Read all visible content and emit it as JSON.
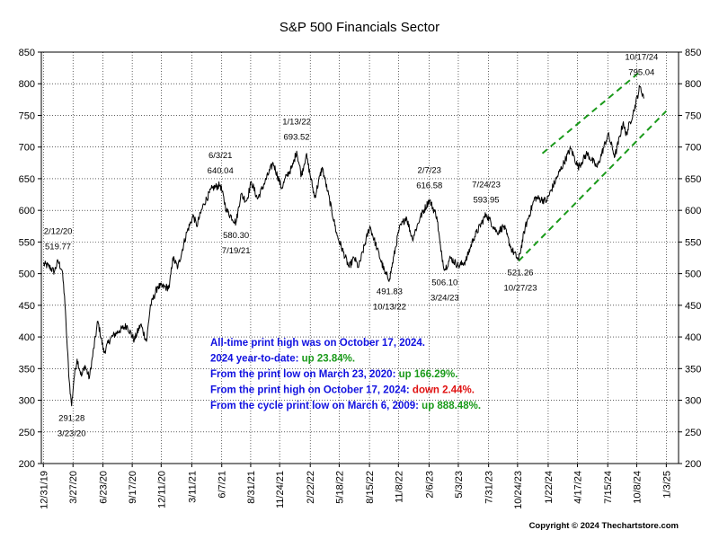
{
  "chart_data": {
    "type": "line",
    "title": "S&P 500 Financials Sector",
    "xlabel": "",
    "ylabel": "",
    "ylim": [
      200,
      850
    ],
    "yticks": [
      200,
      250,
      300,
      350,
      400,
      450,
      500,
      550,
      600,
      650,
      700,
      750,
      800,
      850
    ],
    "x_tick_labels": [
      "12/31/19",
      "3/27/20",
      "6/23/20",
      "9/17/20",
      "12/11/20",
      "3/11/21",
      "6/7/21",
      "8/31/21",
      "11/24/21",
      "2/22/22",
      "5/18/22",
      "8/15/22",
      "11/8/22",
      "2/6/23",
      "5/3/23",
      "7/31/23",
      "10/24/23",
      "1/22/24",
      "4/17/24",
      "7/15/24",
      "10/8/24",
      "1/3/25"
    ],
    "grid": true,
    "series": [
      {
        "values": [
          {
            "x": "2019-12-31",
            "y": 515
          },
          {
            "x": "2020-01-15",
            "y": 512
          },
          {
            "x": "2020-02-01",
            "y": 503
          },
          {
            "x": "2020-02-12",
            "y": 519.77
          },
          {
            "x": "2020-02-24",
            "y": 505
          },
          {
            "x": "2020-03-02",
            "y": 465
          },
          {
            "x": "2020-03-09",
            "y": 395
          },
          {
            "x": "2020-03-16",
            "y": 330
          },
          {
            "x": "2020-03-23",
            "y": 291.28
          },
          {
            "x": "2020-03-30",
            "y": 335
          },
          {
            "x": "2020-04-08",
            "y": 365
          },
          {
            "x": "2020-04-21",
            "y": 338
          },
          {
            "x": "2020-05-01",
            "y": 355
          },
          {
            "x": "2020-05-14",
            "y": 335
          },
          {
            "x": "2020-06-08",
            "y": 425
          },
          {
            "x": "2020-06-26",
            "y": 375
          },
          {
            "x": "2020-07-15",
            "y": 398
          },
          {
            "x": "2020-08-10",
            "y": 410
          },
          {
            "x": "2020-09-01",
            "y": 418
          },
          {
            "x": "2020-09-23",
            "y": 395
          },
          {
            "x": "2020-10-12",
            "y": 420
          },
          {
            "x": "2020-10-29",
            "y": 393
          },
          {
            "x": "2020-11-09",
            "y": 448
          },
          {
            "x": "2020-12-01",
            "y": 480
          },
          {
            "x": "2021-01-04",
            "y": 478
          },
          {
            "x": "2021-01-14",
            "y": 525
          },
          {
            "x": "2021-01-29",
            "y": 510
          },
          {
            "x": "2021-02-24",
            "y": 565
          },
          {
            "x": "2021-03-16",
            "y": 592
          },
          {
            "x": "2021-03-25",
            "y": 575
          },
          {
            "x": "2021-04-15",
            "y": 610
          },
          {
            "x": "2021-05-10",
            "y": 635
          },
          {
            "x": "2021-06-03",
            "y": 640.04
          },
          {
            "x": "2021-06-21",
            "y": 600
          },
          {
            "x": "2021-07-19",
            "y": 580.3
          },
          {
            "x": "2021-08-02",
            "y": 625
          },
          {
            "x": "2021-08-19",
            "y": 615
          },
          {
            "x": "2021-09-02",
            "y": 645
          },
          {
            "x": "2021-09-20",
            "y": 618
          },
          {
            "x": "2021-10-08",
            "y": 640
          },
          {
            "x": "2021-11-05",
            "y": 675
          },
          {
            "x": "2021-11-30",
            "y": 635
          },
          {
            "x": "2021-12-15",
            "y": 655
          },
          {
            "x": "2021-12-31",
            "y": 668
          },
          {
            "x": "2022-01-13",
            "y": 693.52
          },
          {
            "x": "2022-01-27",
            "y": 655
          },
          {
            "x": "2022-02-10",
            "y": 688
          },
          {
            "x": "2022-03-07",
            "y": 620
          },
          {
            "x": "2022-03-29",
            "y": 668
          },
          {
            "x": "2022-04-14",
            "y": 630
          },
          {
            "x": "2022-05-12",
            "y": 560
          },
          {
            "x": "2022-06-16",
            "y": 510
          },
          {
            "x": "2022-07-01",
            "y": 525
          },
          {
            "x": "2022-07-14",
            "y": 510
          },
          {
            "x": "2022-08-16",
            "y": 575
          },
          {
            "x": "2022-09-06",
            "y": 540
          },
          {
            "x": "2022-09-30",
            "y": 500
          },
          {
            "x": "2022-10-13",
            "y": 491.83
          },
          {
            "x": "2022-11-10",
            "y": 570
          },
          {
            "x": "2022-12-01",
            "y": 590
          },
          {
            "x": "2022-12-19",
            "y": 555
          },
          {
            "x": "2023-01-12",
            "y": 590
          },
          {
            "x": "2023-02-07",
            "y": 616.58
          },
          {
            "x": "2023-03-01",
            "y": 590
          },
          {
            "x": "2023-03-13",
            "y": 535
          },
          {
            "x": "2023-03-24",
            "y": 506.1
          },
          {
            "x": "2023-04-10",
            "y": 525
          },
          {
            "x": "2023-05-04",
            "y": 512
          },
          {
            "x": "2023-05-25",
            "y": 520
          },
          {
            "x": "2023-06-16",
            "y": 555
          },
          {
            "x": "2023-07-24",
            "y": 593.95
          },
          {
            "x": "2023-08-25",
            "y": 565
          },
          {
            "x": "2023-09-14",
            "y": 575
          },
          {
            "x": "2023-10-05",
            "y": 540
          },
          {
            "x": "2023-10-27",
            "y": 521.26
          },
          {
            "x": "2023-11-15",
            "y": 572
          },
          {
            "x": "2023-12-14",
            "y": 620
          },
          {
            "x": "2024-01-17",
            "y": 615
          },
          {
            "x": "2024-02-15",
            "y": 650
          },
          {
            "x": "2024-03-28",
            "y": 698
          },
          {
            "x": "2024-04-19",
            "y": 668
          },
          {
            "x": "2024-05-15",
            "y": 690
          },
          {
            "x": "2024-06-14",
            "y": 668
          },
          {
            "x": "2024-07-16",
            "y": 720
          },
          {
            "x": "2024-08-05",
            "y": 685
          },
          {
            "x": "2024-08-30",
            "y": 740
          },
          {
            "x": "2024-09-06",
            "y": 718
          },
          {
            "x": "2024-09-30",
            "y": 758
          },
          {
            "x": "2024-10-17",
            "y": 795.04
          },
          {
            "x": "2024-10-30",
            "y": 778
          }
        ]
      }
    ],
    "annotations": [
      {
        "date_label": "2/12/20",
        "value_label": "519.77",
        "x": "2020-02-12",
        "y": 519.77,
        "pos": "above"
      },
      {
        "date_label": "3/23/20",
        "value_label": "291.28",
        "x": "2020-03-23",
        "y": 291.28,
        "pos": "below"
      },
      {
        "date_label": "6/3/21",
        "value_label": "640.04",
        "x": "2021-06-03",
        "y": 640.04,
        "pos": "above"
      },
      {
        "date_label": "7/19/21",
        "value_label": "580.30",
        "x": "2021-07-19",
        "y": 580.3,
        "pos": "below"
      },
      {
        "date_label": "1/13/22",
        "value_label": "693.52",
        "x": "2022-01-13",
        "y": 693.52,
        "pos": "above"
      },
      {
        "date_label": "10/13/22",
        "value_label": "491.83",
        "x": "2022-10-13",
        "y": 491.83,
        "pos": "below"
      },
      {
        "date_label": "2/7/23",
        "value_label": "616.58",
        "x": "2023-02-07",
        "y": 616.58,
        "pos": "above"
      },
      {
        "date_label": "3/24/23",
        "value_label": "506.10",
        "x": "2023-03-24",
        "y": 506.1,
        "pos": "below"
      },
      {
        "date_label": "7/24/23",
        "value_label": "593.95",
        "x": "2023-07-24",
        "y": 593.95,
        "pos": "above"
      },
      {
        "date_label": "10/27/23",
        "value_label": "521.26",
        "x": "2023-10-27",
        "y": 521.26,
        "pos": "below"
      },
      {
        "date_label": "10/17/24",
        "value_label": "795.04",
        "x": "2024-10-17",
        "y": 795.04,
        "pos": "above"
      }
    ],
    "trend_channel": {
      "color": "#1a9a1a",
      "upper": [
        {
          "x": "2024-01-05",
          "y": 690
        },
        {
          "x": "2024-10-20",
          "y": 820
        }
      ],
      "lower": [
        {
          "x": "2023-10-27",
          "y": 520
        },
        {
          "x": "2025-01-03",
          "y": 757
        }
      ]
    },
    "notes": [
      {
        "parts": [
          {
            "text": "All-time print high was on October 17, 2024.",
            "color": "#1010e0"
          }
        ]
      },
      {
        "parts": [
          {
            "text": "2024 year-to-date:  ",
            "color": "#1010e0"
          },
          {
            "text": "up 23.84%.",
            "color": "#1a9a1a"
          }
        ]
      },
      {
        "parts": [
          {
            "text": "From the print low on March 23, 2020:  ",
            "color": "#1010e0"
          },
          {
            "text": "up 166.29%.",
            "color": "#1a9a1a"
          }
        ]
      },
      {
        "parts": [
          {
            "text": "From the print high on October 17, 2024:  ",
            "color": "#1010e0"
          },
          {
            "text": "down 2.44%.",
            "color": "#e01010"
          }
        ]
      },
      {
        "parts": [
          {
            "text": "From the cycle print low on March 6, 2009:  ",
            "color": "#1010e0"
          },
          {
            "text": "up 888.48%.",
            "color": "#1a9a1a"
          }
        ]
      }
    ],
    "copyright": "Copyright © 2024 Thechartstore.com",
    "line_color": "#000000"
  }
}
